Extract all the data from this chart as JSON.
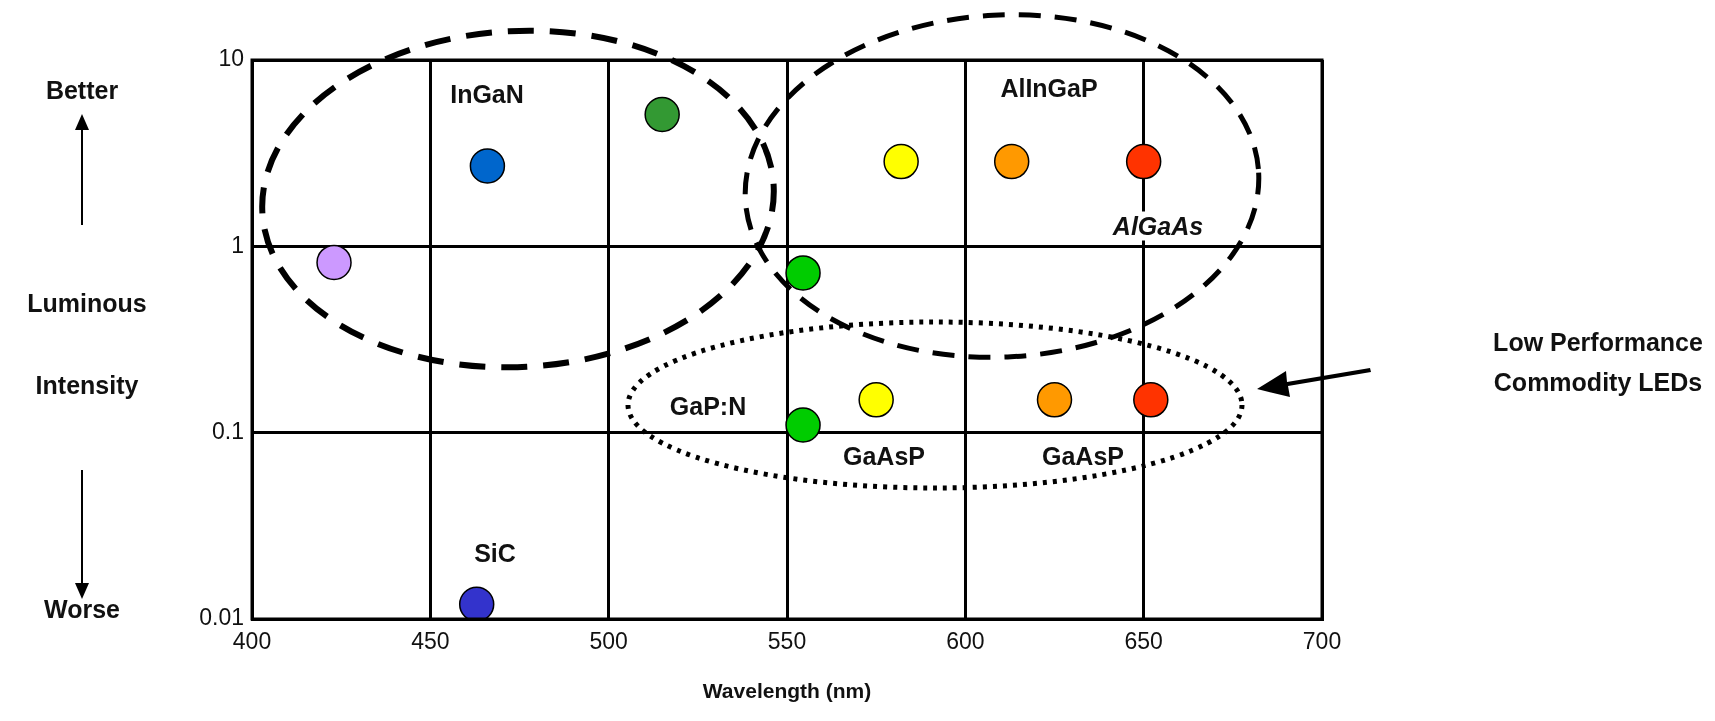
{
  "chart_data": {
    "type": "scatter",
    "xlabel": "Wavelength (nm)",
    "ylabel": "Luminous Intensity",
    "x": [
      423,
      466,
      515,
      463,
      554.5,
      554.5,
      582,
      613,
      650,
      575,
      625,
      652
    ],
    "values": [
      0.82,
      2.7,
      5.1,
      0.012,
      0.72,
      0.11,
      2.85,
      2.85,
      2.85,
      0.15,
      0.15,
      0.15
    ],
    "colors": [
      "#cc99ff",
      "#0066cc",
      "#339933",
      "#3333cc",
      "#00cc00",
      "#00cc00",
      "#ffff00",
      "#ff9900",
      "#ff3300",
      "#ffff00",
      "#ff9900",
      "#ff3300"
    ],
    "xlim": [
      400,
      700
    ],
    "xticks": [
      400,
      450,
      500,
      550,
      600,
      650,
      700
    ],
    "ylim": [
      0.01,
      10
    ],
    "yticks": [
      0.01,
      0.1,
      1,
      10
    ],
    "log": true,
    "grid": true,
    "legend": false,
    "marker": "circle",
    "annotations": [
      "InGaN",
      "AlInGaP",
      "AlGaAs",
      "GaP:N",
      "GaAsP",
      "GaAsP",
      "SiC",
      "Better",
      "Worse",
      "Low Performance Commodity LEDs"
    ]
  }
}
